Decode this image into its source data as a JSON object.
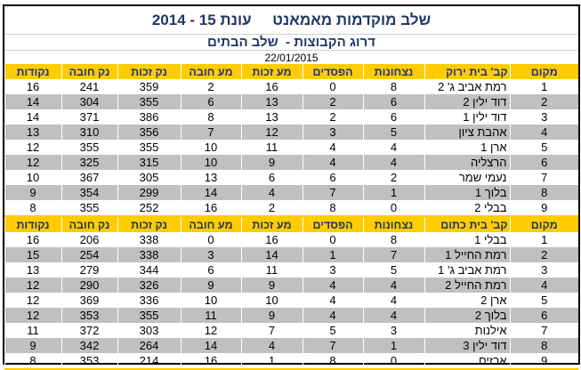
{
  "title": "שלב מוקדמות מאמאנט     עונת 15 - 2014",
  "subtitle": "דרוג הקבוצות -  שלב הבתים",
  "date": "22/01/2015",
  "colors": {
    "header_bg": "#ffcc00",
    "alt_row": "#c0c0c0",
    "title": "#1f3864"
  },
  "groups": [
    {
      "headers": [
        "מקום",
        "קב' בית ירוק",
        "נצחונות",
        "הפסדים",
        "מע זכות",
        "מע חובה",
        "נק זכות",
        "נק חובה",
        "נקודות"
      ],
      "rows": [
        [
          "1",
          "רמת אביב ג' 2",
          "8",
          "0",
          "16",
          "2",
          "359",
          "241",
          "16"
        ],
        [
          "2",
          "דוד ילין 2",
          "6",
          "2",
          "13",
          "6",
          "355",
          "304",
          "14"
        ],
        [
          "3",
          "דוד ילין 1",
          "6",
          "2",
          "13",
          "8",
          "386",
          "371",
          "14"
        ],
        [
          "4",
          "אהבת ציון",
          "5",
          "3",
          "12",
          "7",
          "356",
          "310",
          "13"
        ],
        [
          "5",
          "ארן 1",
          "4",
          "4",
          "11",
          "10",
          "355",
          "355",
          "12"
        ],
        [
          "6",
          "הרצליה",
          "4",
          "4",
          "9",
          "10",
          "315",
          "325",
          "12"
        ],
        [
          "7",
          "נעמי שמר",
          "2",
          "6",
          "6",
          "13",
          "305",
          "367",
          "10"
        ],
        [
          "8",
          "בלוך 1",
          "1",
          "7",
          "4",
          "14",
          "299",
          "354",
          "9"
        ],
        [
          "9",
          "בבלי 2",
          "0",
          "8",
          "2",
          "16",
          "252",
          "355",
          "8"
        ]
      ]
    },
    {
      "headers": [
        "מקום",
        "קב' בית כתום",
        "נצחונות",
        "הפסדים",
        "מע זכות",
        "מע חובה",
        "נק זכות",
        "נק חובה",
        "נקודות"
      ],
      "rows": [
        [
          "1",
          "בבלי 1",
          "8",
          "0",
          "16",
          "0",
          "338",
          "206",
          "16"
        ],
        [
          "2",
          "רמת החייל 1",
          "7",
          "1",
          "14",
          "3",
          "338",
          "254",
          "15"
        ],
        [
          "3",
          "רמת אביב ג' 1",
          "5",
          "3",
          "11",
          "6",
          "344",
          "279",
          "13"
        ],
        [
          "4",
          "רמת החייל 2",
          "4",
          "4",
          "9",
          "9",
          "326",
          "290",
          "12"
        ],
        [
          "5",
          "ארן 2",
          "4",
          "4",
          "10",
          "10",
          "336",
          "369",
          "12"
        ],
        [
          "6",
          "בלוך 2",
          "4",
          "4",
          "9",
          "11",
          "355",
          "353",
          "12"
        ],
        [
          "7",
          "אילנות",
          "3",
          "5",
          "7",
          "12",
          "303",
          "372",
          "11"
        ],
        [
          "8",
          "דוד ילין 3",
          "1",
          "7",
          "4",
          "14",
          "264",
          "342",
          "9"
        ],
        [
          "9",
          "ארזים",
          "0",
          "8",
          "1",
          "16",
          "214",
          "353",
          "8"
        ]
      ]
    }
  ]
}
